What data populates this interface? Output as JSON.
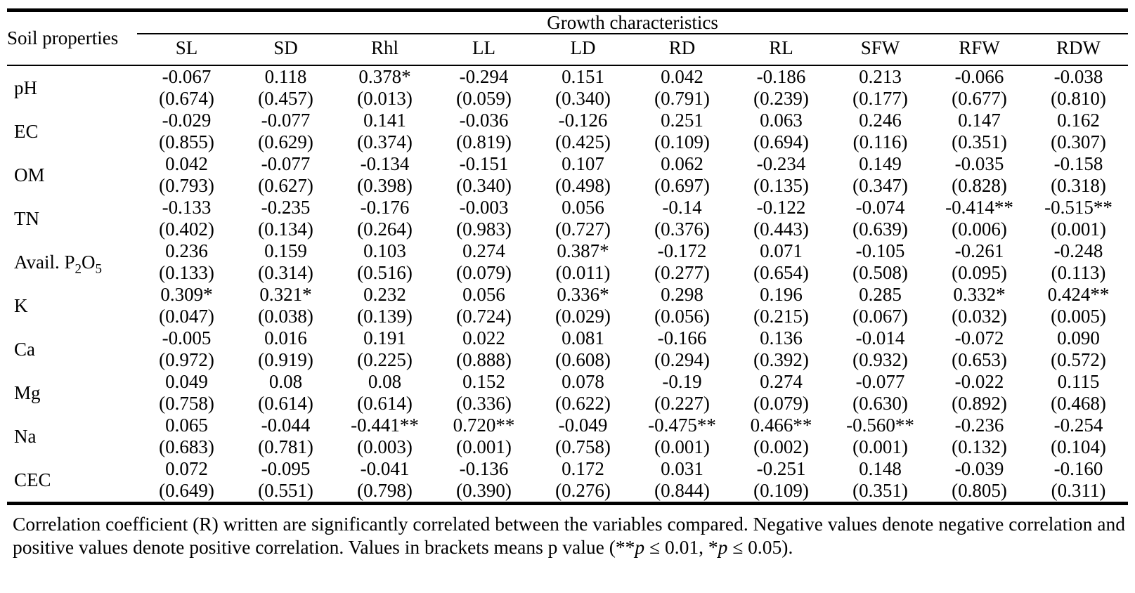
{
  "table": {
    "corner_header": "Soil properties",
    "group_header": "Growth characteristics",
    "columns": [
      "SL",
      "SD",
      "Rhl",
      "LL",
      "LD",
      "RD",
      "RL",
      "SFW",
      "RFW",
      "RDW"
    ],
    "rows": [
      {
        "label": "pH",
        "values": [
          "-0.067",
          "0.118",
          "0.378*",
          "-0.294",
          "0.151",
          "0.042",
          "-0.186",
          "0.213",
          "-0.066",
          "-0.038"
        ],
        "pvalues": [
          "(0.674)",
          "(0.457)",
          "(0.013)",
          "(0.059)",
          "(0.340)",
          "(0.791)",
          "(0.239)",
          "(0.177)",
          "(0.677)",
          "(0.810)"
        ]
      },
      {
        "label": "EC",
        "values": [
          "-0.029",
          "-0.077",
          "0.141",
          "-0.036",
          "-0.126",
          "0.251",
          "0.063",
          "0.246",
          "0.147",
          "0.162"
        ],
        "pvalues": [
          "(0.855)",
          "(0.629)",
          "(0.374)",
          "(0.819)",
          "(0.425)",
          "(0.109)",
          "(0.694)",
          "(0.116)",
          "(0.351)",
          "(0.307)"
        ]
      },
      {
        "label": "OM",
        "values": [
          "0.042",
          "-0.077",
          "-0.134",
          "-0.151",
          "0.107",
          "0.062",
          "-0.234",
          "0.149",
          "-0.035",
          "-0.158"
        ],
        "pvalues": [
          "(0.793)",
          "(0.627)",
          "(0.398)",
          "(0.340)",
          "(0.498)",
          "(0.697)",
          "(0.135)",
          "(0.347)",
          "(0.828)",
          "(0.318)"
        ]
      },
      {
        "label": "TN",
        "values": [
          "-0.133",
          "-0.235",
          "-0.176",
          "-0.003",
          "0.056",
          "-0.14",
          "-0.122",
          "-0.074",
          "-0.414**",
          "-0.515**"
        ],
        "pvalues": [
          "(0.402)",
          "(0.134)",
          "(0.264)",
          "(0.983)",
          "(0.727)",
          "(0.376)",
          "(0.443)",
          "(0.639)",
          "(0.006)",
          "(0.001)"
        ]
      },
      {
        "label": "Avail. P2O5",
        "label_parts": [
          {
            "text": "Avail. P"
          },
          {
            "text": "2",
            "sub": true
          },
          {
            "text": "O"
          },
          {
            "text": "5",
            "sub": true
          }
        ],
        "values": [
          "0.236",
          "0.159",
          "0.103",
          "0.274",
          "0.387*",
          "-0.172",
          "0.071",
          "-0.105",
          "-0.261",
          "-0.248"
        ],
        "pvalues": [
          "(0.133)",
          "(0.314)",
          "(0.516)",
          "(0.079)",
          "(0.011)",
          "(0.277)",
          "(0.654)",
          "(0.508)",
          "(0.095)",
          "(0.113)"
        ]
      },
      {
        "label": "K",
        "values": [
          "0.309*",
          "0.321*",
          "0.232",
          "0.056",
          "0.336*",
          "0.298",
          "0.196",
          "0.285",
          "0.332*",
          "0.424**"
        ],
        "pvalues": [
          "(0.047)",
          "(0.038)",
          "(0.139)",
          "(0.724)",
          "(0.029)",
          "(0.056)",
          "(0.215)",
          "(0.067)",
          "(0.032)",
          "(0.005)"
        ]
      },
      {
        "label": "Ca",
        "values": [
          "-0.005",
          "0.016",
          "0.191",
          "0.022",
          "0.081",
          "-0.166",
          "0.136",
          "-0.014",
          "-0.072",
          "0.090"
        ],
        "pvalues": [
          "(0.972)",
          "(0.919)",
          "(0.225)",
          "(0.888)",
          "(0.608)",
          "(0.294)",
          "(0.392)",
          "(0.932)",
          "(0.653)",
          "(0.572)"
        ]
      },
      {
        "label": "Mg",
        "values": [
          "0.049",
          "0.08",
          "0.08",
          "0.152",
          "0.078",
          "-0.19",
          "0.274",
          "-0.077",
          "-0.022",
          "0.115"
        ],
        "pvalues": [
          "(0.758)",
          "(0.614)",
          "(0.614)",
          "(0.336)",
          "(0.622)",
          "(0.227)",
          "(0.079)",
          "(0.630)",
          "(0.892)",
          "(0.468)"
        ]
      },
      {
        "label": "Na",
        "values": [
          "0.065",
          "-0.044",
          "-0.441**",
          "0.720**",
          "-0.049",
          "-0.475**",
          "0.466**",
          "-0.560**",
          "-0.236",
          "-0.254"
        ],
        "pvalues": [
          "(0.683)",
          "(0.781)",
          "(0.003)",
          "(0.001)",
          "(0.758)",
          "(0.001)",
          "(0.002)",
          "(0.001)",
          "(0.132)",
          "(0.104)"
        ]
      },
      {
        "label": "CEC",
        "values": [
          "0.072",
          "-0.095",
          "-0.041",
          "-0.136",
          "0.172",
          "0.031",
          "-0.251",
          "0.148",
          "-0.039",
          "-0.160"
        ],
        "pvalues": [
          "(0.649)",
          "(0.551)",
          "(0.798)",
          "(0.390)",
          "(0.276)",
          "(0.844)",
          "(0.109)",
          "(0.351)",
          "(0.805)",
          "(0.311)"
        ]
      }
    ]
  },
  "footnote": {
    "segments": [
      {
        "text": "Correlation coefficient (R) written are significantly correlated between the variables compared. Negative values denote negative correlation and positive values denote positive correlation. Values in brackets means p value (**"
      },
      {
        "text": "p",
        "italic": true
      },
      {
        "text": " ≤ 0.01, *"
      },
      {
        "text": "p",
        "italic": true
      },
      {
        "text": " ≤ 0.05)."
      }
    ]
  }
}
